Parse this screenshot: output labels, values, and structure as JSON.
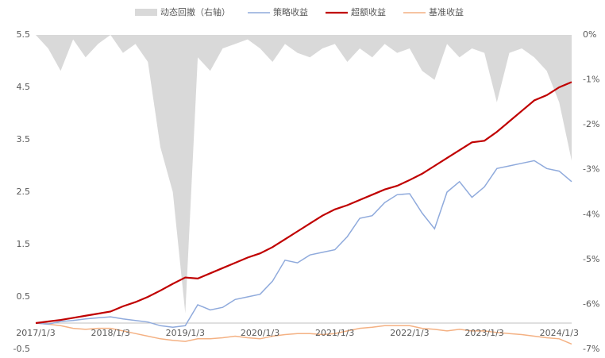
{
  "chart_data": {
    "type": "line",
    "categories": [
      "2017/1/3",
      null,
      null,
      null,
      null,
      null,
      "2018/1/3",
      null,
      null,
      null,
      null,
      null,
      "2019/1/3",
      null,
      null,
      null,
      null,
      null,
      "2020/1/3",
      null,
      null,
      null,
      null,
      null,
      "2021/1/3",
      null,
      null,
      null,
      null,
      null,
      "2022/1/3",
      null,
      null,
      null,
      null,
      null,
      "2023/1/3",
      null,
      null,
      null,
      null,
      null,
      "2024/1/3",
      null
    ],
    "series": [
      {
        "name": "动态回撤（右轴）",
        "color": "#d9d9d9",
        "kind": "area",
        "axis": "y2",
        "values": [
          0,
          -0.3,
          -0.8,
          -0.1,
          -0.5,
          -0.2,
          0,
          -0.4,
          -0.2,
          -0.6,
          -2.5,
          -3.5,
          -6.2,
          -0.5,
          -0.8,
          -0.3,
          -0.2,
          -0.1,
          -0.3,
          -0.6,
          -0.2,
          -0.4,
          -0.5,
          -0.3,
          -0.2,
          -0.6,
          -0.3,
          -0.5,
          -0.2,
          -0.4,
          -0.3,
          -0.8,
          -1.0,
          -0.2,
          -0.5,
          -0.3,
          -0.4,
          -1.5,
          -0.4,
          -0.3,
          -0.5,
          -0.8,
          -1.5,
          -2.8
        ]
      },
      {
        "name": "策略收益",
        "color": "#8faadc",
        "kind": "line",
        "values": [
          0,
          -0.02,
          0.03,
          0.05,
          0.08,
          0.1,
          0.12,
          0.08,
          0.05,
          0.02,
          -0.05,
          -0.08,
          -0.05,
          0.35,
          0.25,
          0.3,
          0.45,
          0.5,
          0.55,
          0.8,
          1.2,
          1.15,
          1.3,
          1.35,
          1.4,
          1.65,
          2.0,
          2.05,
          2.3,
          2.45,
          2.47,
          2.1,
          1.8,
          2.5,
          2.7,
          2.4,
          2.6,
          2.95,
          3.0,
          3.05,
          3.1,
          2.95,
          2.9,
          2.7
        ]
      },
      {
        "name": "超额收益",
        "color": "#c00000",
        "kind": "line",
        "values": [
          0,
          0.03,
          0.06,
          0.1,
          0.14,
          0.18,
          0.22,
          0.32,
          0.4,
          0.5,
          0.62,
          0.75,
          0.87,
          0.85,
          0.95,
          1.05,
          1.15,
          1.25,
          1.33,
          1.45,
          1.6,
          1.75,
          1.9,
          2.05,
          2.17,
          2.25,
          2.35,
          2.45,
          2.55,
          2.62,
          2.73,
          2.85,
          3.0,
          3.15,
          3.3,
          3.45,
          3.48,
          3.65,
          3.85,
          4.05,
          4.25,
          4.35,
          4.5,
          4.6
        ]
      },
      {
        "name": "基准收益",
        "color": "#f4b183",
        "kind": "line",
        "values": [
          0,
          -0.02,
          -0.05,
          -0.1,
          -0.12,
          -0.1,
          -0.1,
          -0.15,
          -0.2,
          -0.25,
          -0.3,
          -0.33,
          -0.35,
          -0.3,
          -0.3,
          -0.28,
          -0.25,
          -0.28,
          -0.3,
          -0.25,
          -0.22,
          -0.2,
          -0.2,
          -0.22,
          -0.2,
          -0.15,
          -0.1,
          -0.08,
          -0.05,
          -0.05,
          -0.05,
          -0.1,
          -0.12,
          -0.15,
          -0.12,
          -0.15,
          -0.15,
          -0.18,
          -0.2,
          -0.22,
          -0.25,
          -0.28,
          -0.3,
          -0.4
        ]
      }
    ],
    "ylim": [
      -0.5,
      5.5
    ],
    "yticks": [
      5.5,
      4.5,
      3.5,
      2.5,
      1.5,
      0.5,
      -0.5
    ],
    "y2lim": [
      -7,
      0
    ],
    "y2ticks": [
      {
        "value": 0,
        "label": "0%"
      },
      {
        "value": -1,
        "label": "-1%"
      },
      {
        "value": -2,
        "label": "-2%"
      },
      {
        "value": -3,
        "label": "-3%"
      },
      {
        "value": -4,
        "label": "-4%"
      },
      {
        "value": -5,
        "label": "-5%"
      },
      {
        "value": -6,
        "label": "-6%"
      },
      {
        "value": -7,
        "label": "-7%"
      }
    ],
    "legend": "top"
  }
}
